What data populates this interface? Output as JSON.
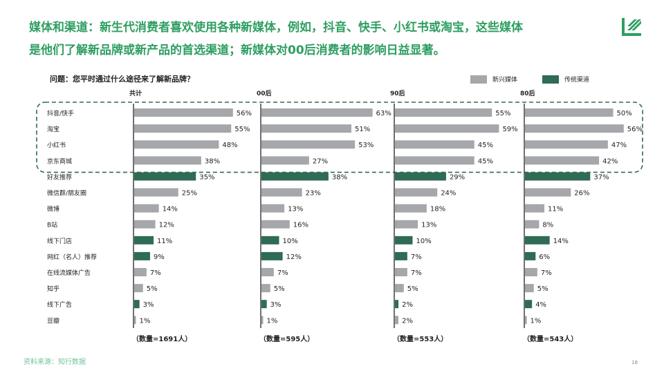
{
  "headline": {
    "line1": "媒体和渠道：新生代消费者喜欢使用各种新媒体，例如，抖音、快手、小红书或淘宝，这些媒体",
    "line2": "是他们了解新品牌或新产品的首选渠道；新媒体对00后消费者的影响日益显著。"
  },
  "question": "问题：您平时通过什么途径来了解新品牌？",
  "legend": {
    "new_media": "新兴媒体",
    "traditional": "传统渠道"
  },
  "colors": {
    "new_media": "#a5a7ab",
    "traditional": "#2f6b55",
    "headline": "#2e9e62",
    "highlight_border": "#2f6b55"
  },
  "footer_note": "资料来源：知行数据",
  "page_number": "18",
  "chart_data": {
    "type": "bar",
    "orientation": "horizontal",
    "title": "问题：您平时通过什么途径来了解新品牌？",
    "categories": [
      "抖音/快手",
      "淘宝",
      "小红书",
      "京东商城",
      "好友推荐",
      "微信群/朋友圈",
      "微博",
      "B站",
      "线下门店",
      "网红（名人）推荐",
      "在线流媒体广告",
      "知乎",
      "线下广告",
      "豆瓣"
    ],
    "category_type": [
      "new",
      "new",
      "new",
      "new",
      "traditional",
      "new",
      "new",
      "new",
      "traditional",
      "traditional",
      "new",
      "new",
      "traditional",
      "new"
    ],
    "highlighted_categories": [
      "抖音/快手",
      "淘宝",
      "小红书",
      "京东商城"
    ],
    "panels": [
      {
        "name": "共计",
        "sample": "（数量=1691人）",
        "values": [
          56,
          55,
          48,
          38,
          35,
          25,
          14,
          12,
          11,
          9,
          7,
          5,
          3,
          1
        ]
      },
      {
        "name": "00后",
        "sample": "（数量=595人）",
        "values": [
          63,
          51,
          53,
          27,
          38,
          23,
          13,
          16,
          10,
          12,
          7,
          5,
          3,
          1
        ]
      },
      {
        "name": "90后",
        "sample": "（数量=553人）",
        "values": [
          55,
          59,
          45,
          45,
          29,
          24,
          18,
          13,
          10,
          7,
          7,
          5,
          2,
          2
        ]
      },
      {
        "name": "80后",
        "sample": "（数量=543人）",
        "values": [
          50,
          56,
          47,
          42,
          37,
          26,
          11,
          8,
          14,
          6,
          7,
          5,
          4,
          1
        ]
      }
    ],
    "value_suffix": "%",
    "xlim": [
      0,
      100
    ]
  }
}
